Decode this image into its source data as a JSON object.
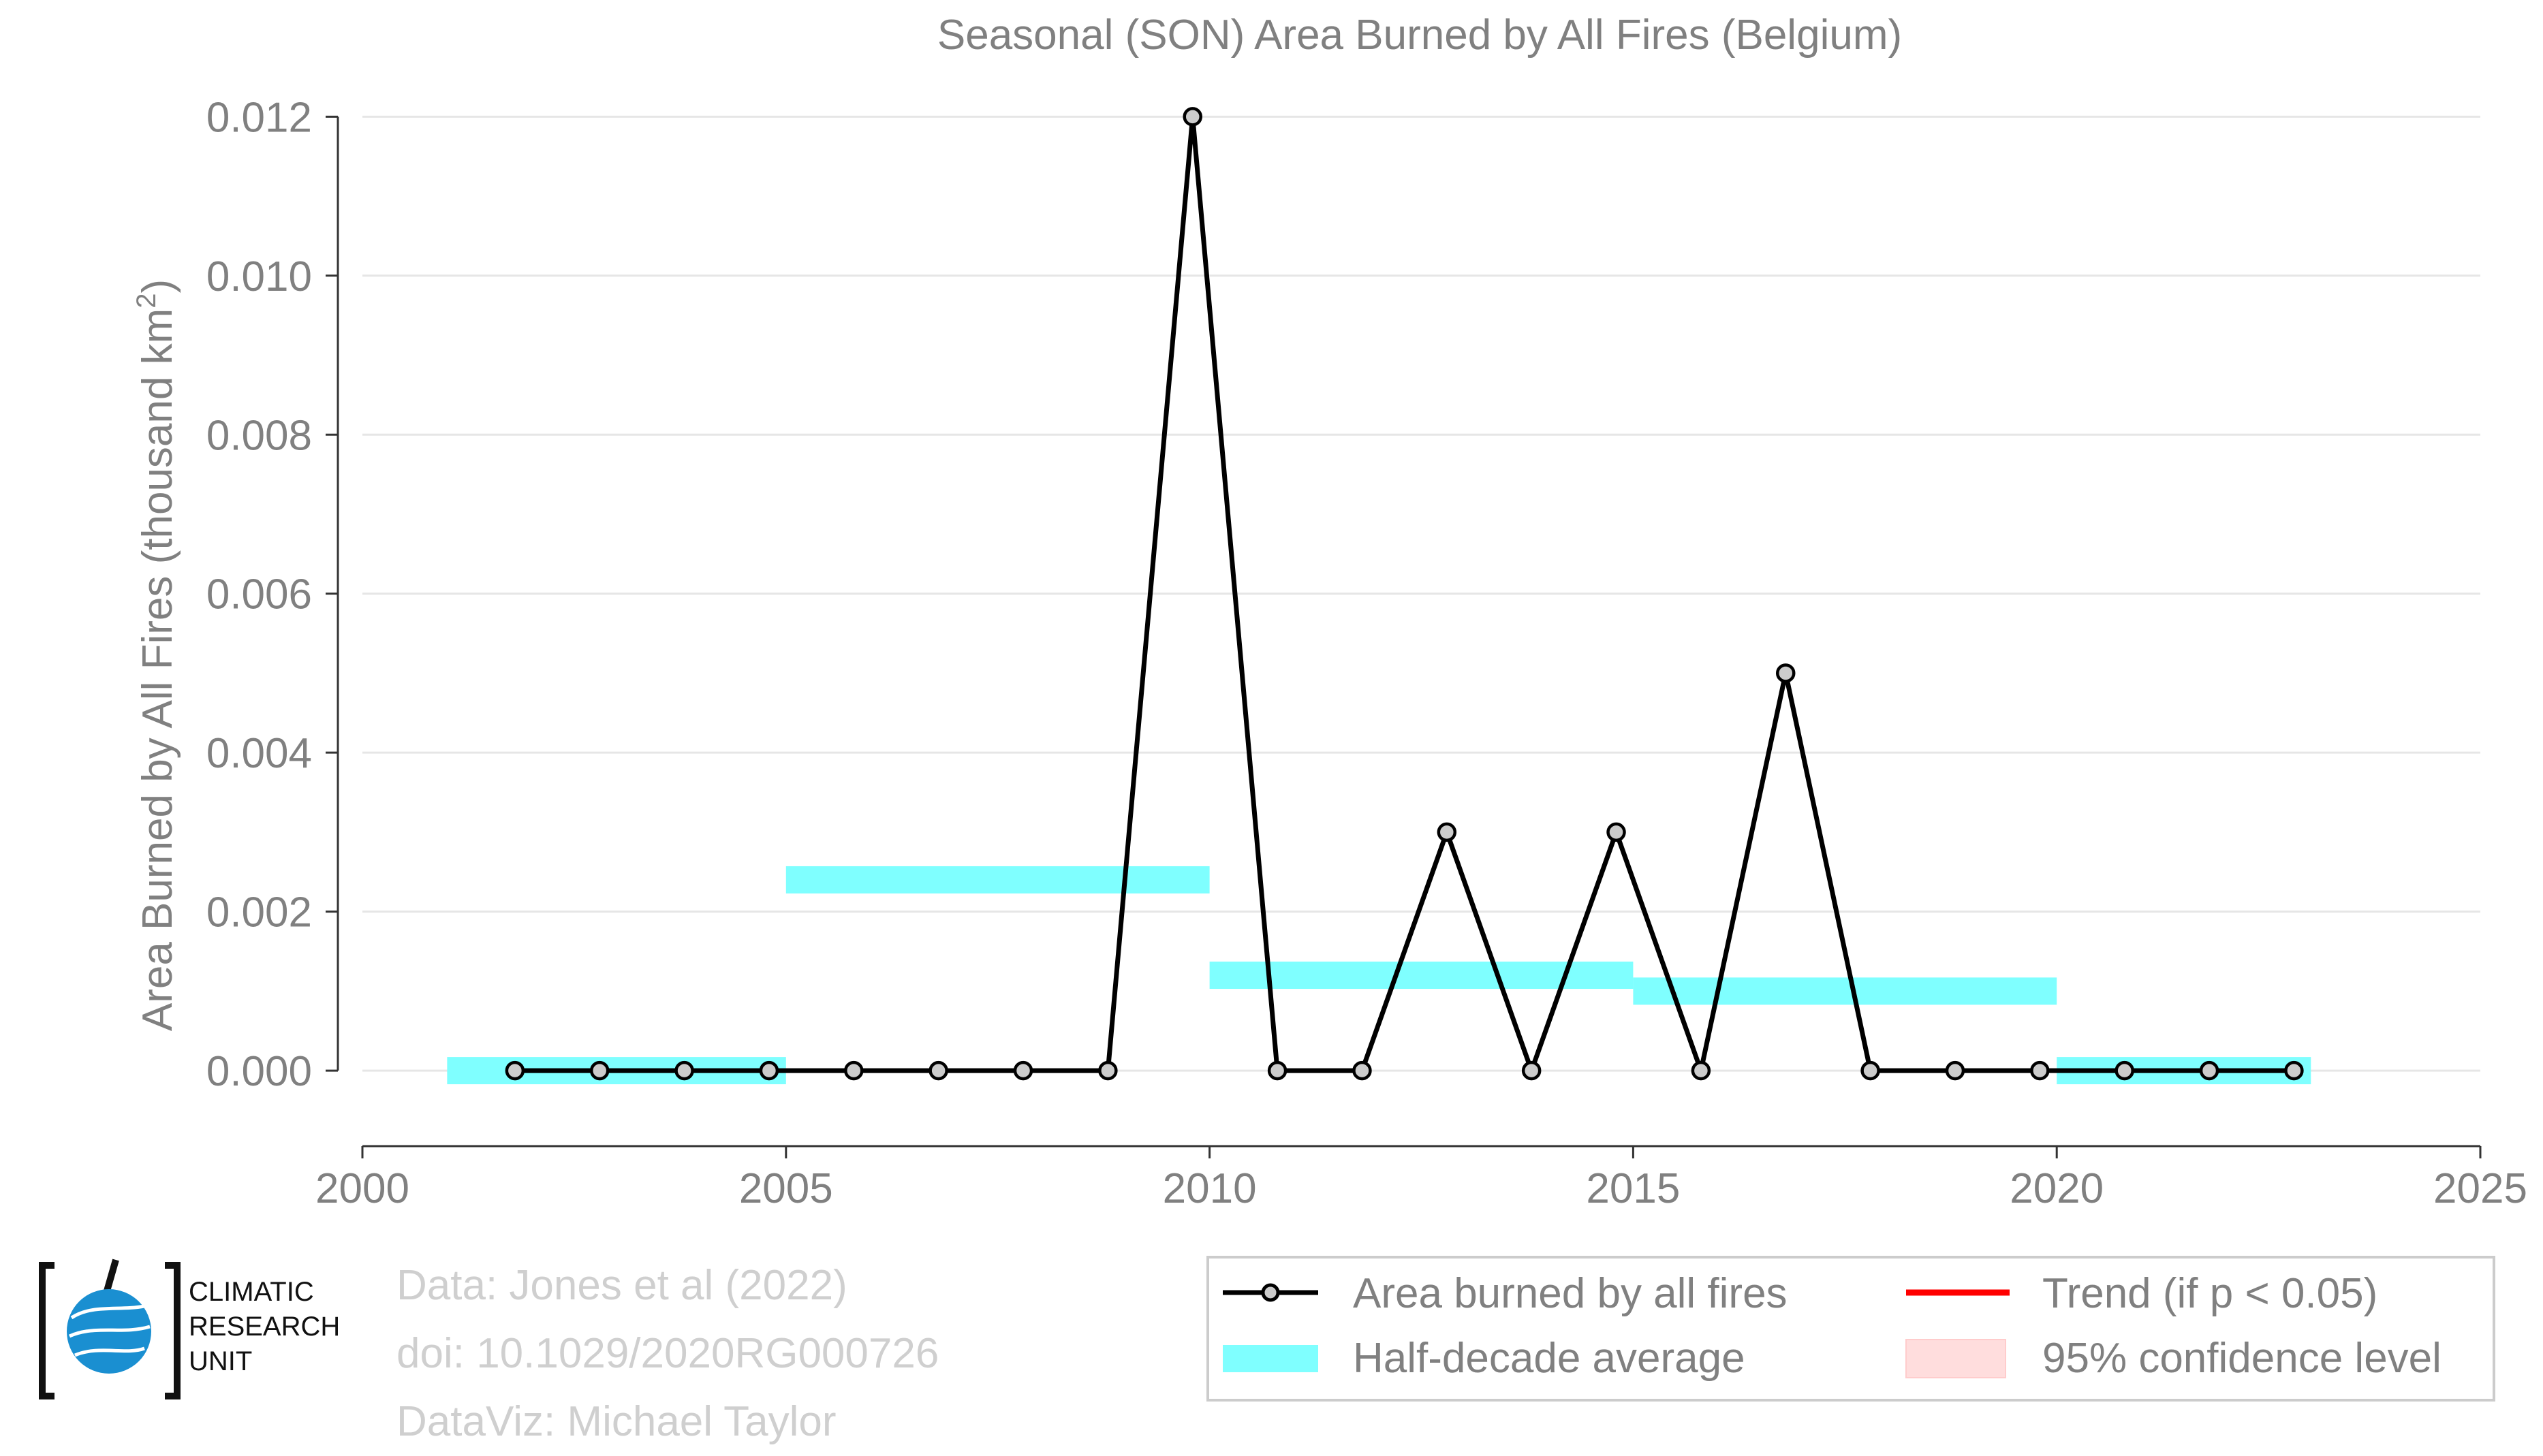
{
  "chart_data": {
    "type": "line",
    "title": "Seasonal (SON) Area Burned by All Fires (Belgium)",
    "xlabel": "",
    "ylabel": "Area Burned by All Fires (thousand km",
    "ylabel_sup": "2",
    "ylabel_close": ")",
    "xlim": [
      2000,
      2025
    ],
    "ylim": [
      -0.00095,
      0.0122
    ],
    "xticks": [
      2000,
      2005,
      2010,
      2015,
      2020,
      2025
    ],
    "yticks": [
      0.0,
      0.002,
      0.004,
      0.006,
      0.008,
      0.01,
      0.012
    ],
    "ytick_labels": [
      "0.000",
      "0.002",
      "0.004",
      "0.006",
      "0.008",
      "0.010",
      "0.012"
    ],
    "grid": "horizontal",
    "legend_position": "bottom-right",
    "series": [
      {
        "name": "Area burned by all fires",
        "color": "#000000",
        "marker_fill": "#cccccc",
        "x": [
          2001.8,
          2002.8,
          2003.8,
          2004.8,
          2005.8,
          2006.8,
          2007.8,
          2008.8,
          2009.8,
          2010.8,
          2011.8,
          2012.8,
          2013.8,
          2014.8,
          2015.8,
          2016.8,
          2017.8,
          2018.8,
          2019.8,
          2020.8,
          2021.8,
          2022.8
        ],
        "y": [
          0,
          0,
          0,
          0,
          0,
          0,
          0,
          0,
          0.012,
          0,
          0,
          0.003,
          0,
          0.003,
          0,
          0.005,
          0,
          0,
          0,
          0,
          0,
          0
        ]
      }
    ],
    "half_decade_average": {
      "name": "Half-decade average",
      "color": "#7fffff",
      "segments": [
        {
          "x_start": 2001,
          "x_end": 2005,
          "y": 0.0
        },
        {
          "x_start": 2005,
          "x_end": 2010,
          "y": 0.0024
        },
        {
          "x_start": 2010,
          "x_end": 2015,
          "y": 0.0012
        },
        {
          "x_start": 2015,
          "x_end": 2020,
          "y": 0.001
        },
        {
          "x_start": 2020,
          "x_end": 2023,
          "y": 0.0
        }
      ]
    },
    "legend": [
      {
        "label": "Area burned by all fires",
        "kind": "line-marker",
        "color": "#000000"
      },
      {
        "label": "Trend (if p < 0.05)",
        "kind": "line",
        "color": "#ff0000"
      },
      {
        "label": "Half-decade average",
        "kind": "band",
        "color": "#7fffff"
      },
      {
        "label": "95% confidence level",
        "kind": "fill",
        "color": "#ffdddd"
      }
    ]
  },
  "credits": {
    "line1": "Data: Jones et al (2022)",
    "line2": "doi: 10.1029/2020RG000726",
    "line3": "DataViz: Michael Taylor"
  },
  "logo": {
    "line1": "CLIMATIC",
    "line2": "RESEARCH",
    "line3": "UNIT"
  },
  "colors": {
    "axis_text": "#808080",
    "grid": "#e6e6e6",
    "credits_text": "#cfcfcf"
  }
}
